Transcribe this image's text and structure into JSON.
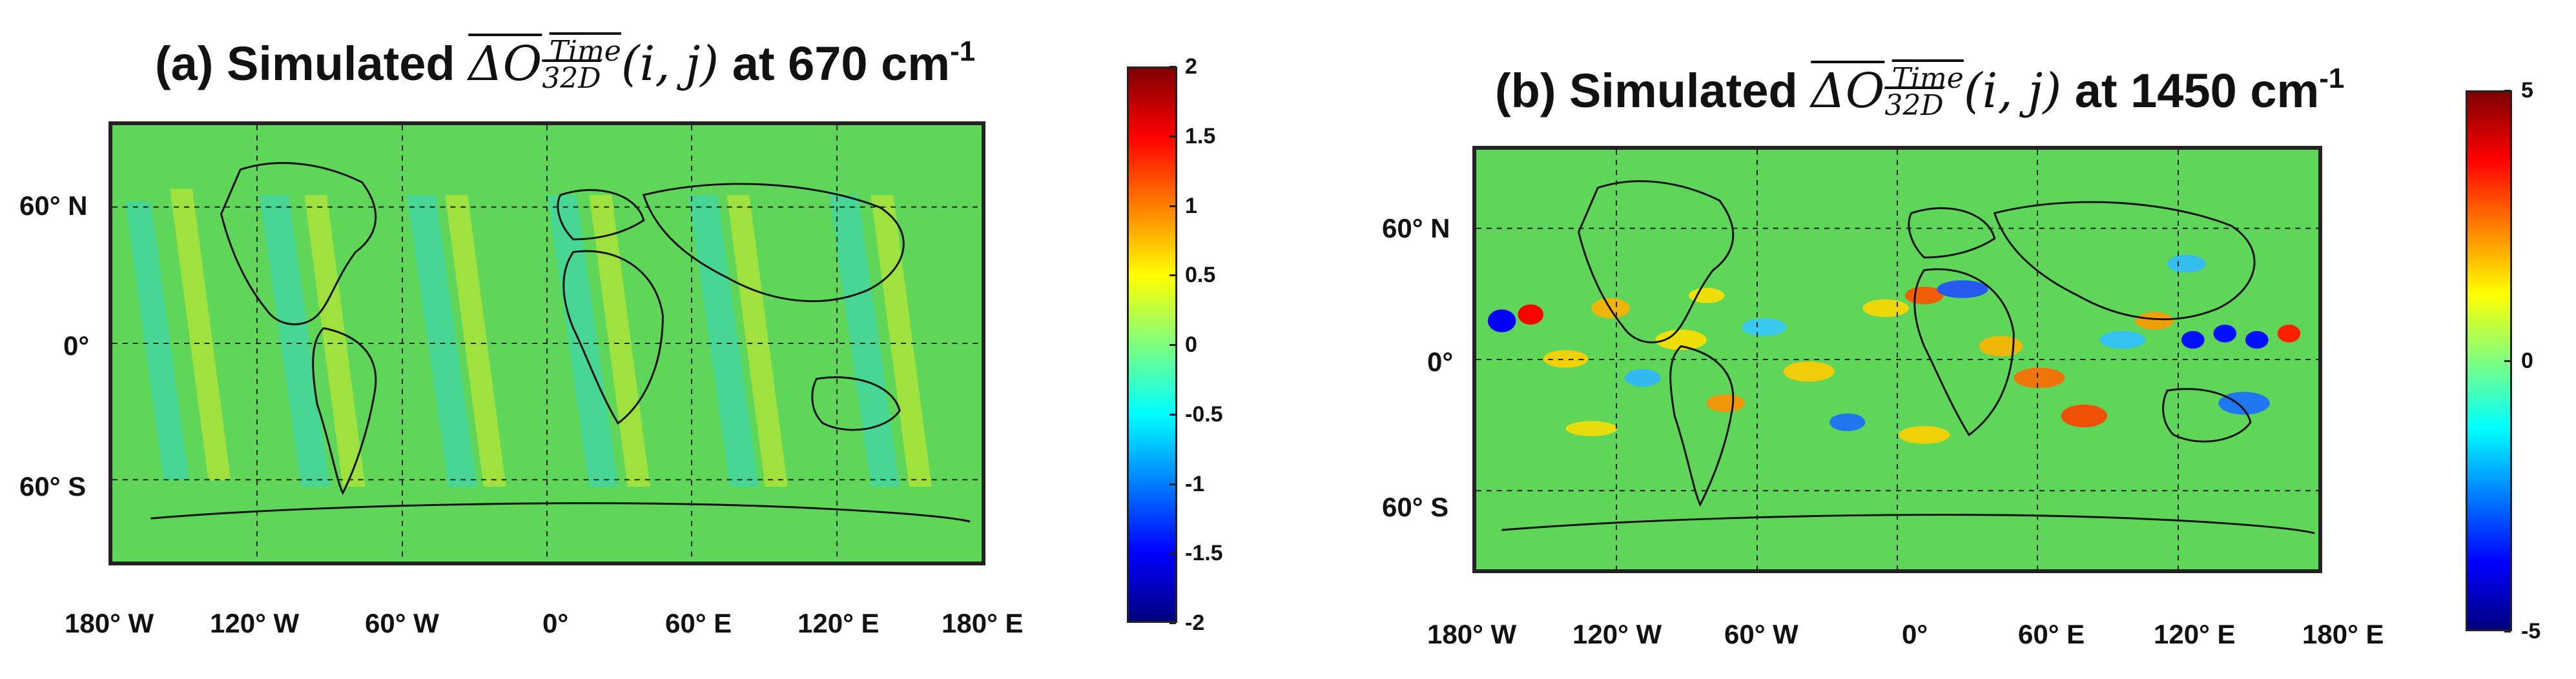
{
  "panels": [
    {
      "title_prefix": "(a)  Simulated ",
      "title_math": "ΔO",
      "title_sub": "32D",
      "title_sup_math": "Time",
      "title_args": "(i, j)",
      "title_suffix": " at 670 cm",
      "title_exp": "-1",
      "lat_labels": [
        "60° N",
        "0°",
        "60° S"
      ],
      "lon_labels": [
        "180° W",
        "120° W",
        "60° W",
        "0°",
        "60° E",
        "120° E",
        "180° E"
      ],
      "colorbar_ticks": [
        "2",
        "1.5",
        "1",
        "0.5",
        "0",
        "-0.5",
        "-1",
        "-1.5",
        "-2"
      ],
      "colorbar_range": [
        -2,
        2
      ]
    },
    {
      "title_prefix": "(b) Simulated ",
      "title_math": "ΔO",
      "title_sub": "32D",
      "title_sup_math": "Time",
      "title_args": "(i, j)",
      "title_suffix": " at 1450 cm",
      "title_exp": "-1",
      "lat_labels": [
        "60° N",
        "0°",
        "60° S"
      ],
      "lon_labels": [
        "180° W",
        "120° W",
        "60° W",
        "0°",
        "60° E",
        "120° E",
        "180° E"
      ],
      "colorbar_ticks": [
        "5",
        "0",
        "-5"
      ],
      "colorbar_range": [
        -5,
        5
      ]
    }
  ],
  "colors": {
    "map_background": "#5fd65a",
    "jet": [
      "#00007f",
      "#0000ff",
      "#007fff",
      "#00ffff",
      "#7fff7f",
      "#ffff00",
      "#ff7f00",
      "#ff0000",
      "#7f0000"
    ]
  }
}
